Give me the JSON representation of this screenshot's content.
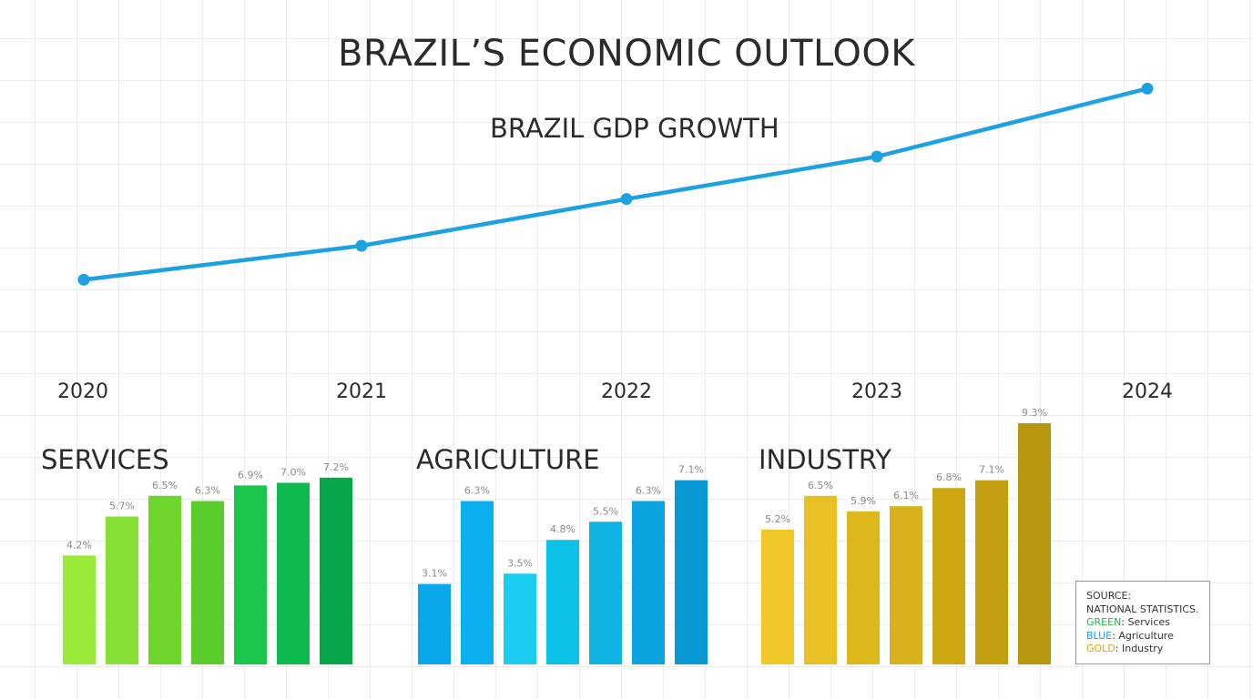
{
  "page": {
    "title": "BRAZIL’S ECONOMIC OUTLOOK"
  },
  "chart_data": [
    {
      "type": "line",
      "title": "BRAZIL GDP GROWTH",
      "x": [
        "2020",
        "2021",
        "2022",
        "2023",
        "2024"
      ],
      "series": [
        {
          "values": [
            -2.3,
            -1.5,
            -0.4,
            0.6,
            2.2
          ]
        }
      ],
      "ylim": [
        -4.5,
        3.0
      ],
      "grid": true,
      "color": "#1ea1e0"
    },
    {
      "type": "bar",
      "title": "SERVICES",
      "values": [
        4.2,
        5.7,
        6.5,
        6.3,
        6.9,
        7.0,
        7.2
      ],
      "labels": [
        "4.2%",
        "5.7%",
        "6.5%",
        "6.3%",
        "6.9%",
        "7.0%",
        "7.2%"
      ],
      "colors": [
        "#9aea3a",
        "#86e035",
        "#6fd62e",
        "#5acd2c",
        "#1cc64a",
        "#0eb94e",
        "#06a84a"
      ],
      "ylim": [
        0,
        10
      ]
    },
    {
      "type": "bar",
      "title": "AGRICULTURE",
      "values": [
        3.1,
        6.3,
        3.5,
        4.8,
        5.5,
        6.3,
        7.1
      ],
      "labels": [
        "3.1%",
        "6.3%",
        "3.5%",
        "4.8%",
        "5.5%",
        "6.3%",
        "7.1%"
      ],
      "colors": [
        "#0aa8ea",
        "#0ab0ee",
        "#1bcdee",
        "#0cc2e6",
        "#10b4e2",
        "#0aa4de",
        "#0898d4"
      ],
      "ylim": [
        0,
        10
      ]
    },
    {
      "type": "bar",
      "title": "INDUSTRY",
      "values": [
        5.2,
        6.5,
        5.9,
        6.1,
        6.8,
        7.1,
        9.3
      ],
      "labels": [
        "5.2%",
        "6.5%",
        "5.9%",
        "6.1%",
        "6.8%",
        "7.1%",
        "9.3%"
      ],
      "colors": [
        "#f0c82a",
        "#e6c024",
        "#dcb81c",
        "#d8b21c",
        "#cda812",
        "#c39f10",
        "#b8970e"
      ],
      "ylim": [
        0,
        10
      ]
    }
  ],
  "legend": {
    "source_label": "SOURCE:",
    "source_value": "NATIONAL STATISTICS.",
    "items": [
      {
        "key": "GREEN",
        "sep": ": ",
        "text": "Services",
        "color": "#29b24a"
      },
      {
        "key": "BLUE",
        "sep": ": ",
        "text": "Agriculture",
        "color": "#1e9fe0"
      },
      {
        "key": "GOLD",
        "sep": ": ",
        "text": "Industry",
        "color": "#d4a818"
      }
    ]
  }
}
